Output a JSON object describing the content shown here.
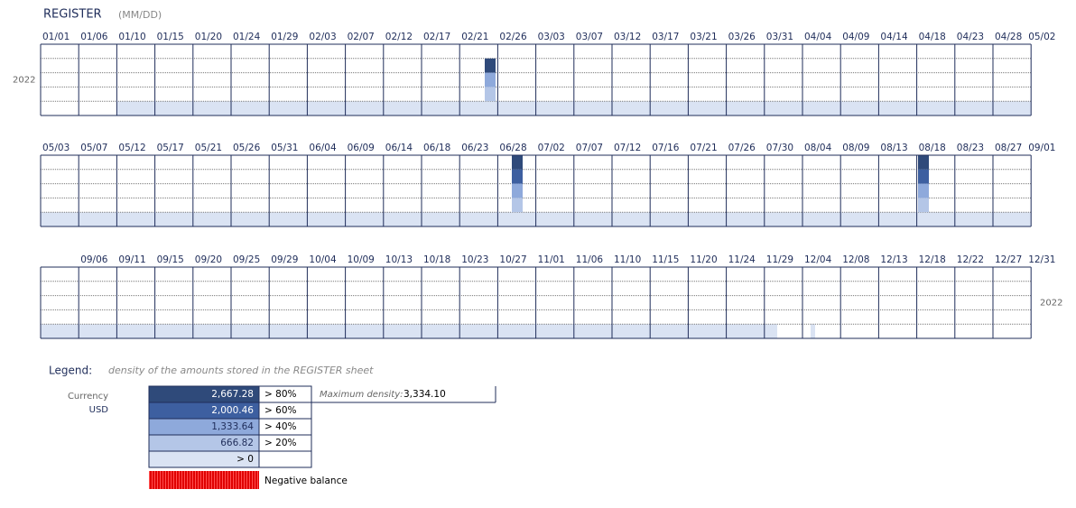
{
  "header": {
    "title": "REGISTER",
    "unit": "(MM/DD)"
  },
  "rows": [
    {
      "dates": [
        "01/01",
        "01/06",
        "01/10",
        "01/15",
        "01/20",
        "01/24",
        "01/29",
        "02/03",
        "02/07",
        "02/12",
        "02/17",
        "02/21",
        "02/26",
        "03/03",
        "03/07",
        "03/12",
        "03/17",
        "03/21",
        "03/26",
        "03/31",
        "04/04",
        "04/09",
        "04/14",
        "04/18",
        "04/23",
        "04/28",
        "05/02"
      ],
      "year": "2022"
    },
    {
      "dates": [
        "05/03",
        "05/07",
        "05/12",
        "05/17",
        "05/21",
        "05/26",
        "05/31",
        "06/04",
        "06/09",
        "06/14",
        "06/18",
        "06/23",
        "06/28",
        "07/02",
        "07/07",
        "07/12",
        "07/16",
        "07/21",
        "07/26",
        "07/30",
        "08/04",
        "08/09",
        "08/13",
        "08/18",
        "08/23",
        "08/27",
        "09/01"
      ]
    },
    {
      "dates": [
        null,
        "09/06",
        "09/11",
        "09/15",
        "09/20",
        "09/25",
        "09/29",
        "10/04",
        "10/09",
        "10/13",
        "10/18",
        "10/23",
        "10/27",
        "11/01",
        "11/06",
        "11/10",
        "11/15",
        "11/20",
        "11/24",
        "11/29",
        "12/04",
        "12/08",
        "12/13",
        "12/18",
        "12/22",
        "12/27",
        "12/31"
      ],
      "year": "2022"
    }
  ],
  "legend": {
    "label": "Legend:",
    "description": "density of the amounts stored in the REGISTER sheet",
    "currency_label": "Currency",
    "currency": "USD",
    "levels": [
      {
        "amount": "2,667.28",
        "threshold": "> 80%"
      },
      {
        "amount": "2,000.46",
        "threshold": "> 60%"
      },
      {
        "amount": "1,333.64",
        "threshold": "> 40%"
      },
      {
        "amount": "666.82",
        "threshold": "> 20%"
      },
      {
        "threshold": "> 0"
      }
    ],
    "max_density_label": "Maximum density:",
    "max_density": "3,334.10",
    "negative_label": "Negative balance"
  }
}
